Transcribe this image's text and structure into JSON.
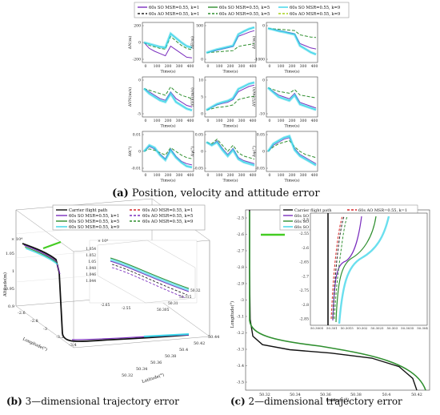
{
  "panel_a": {
    "legend": [
      {
        "label": "60s SO MSR=0.55, k=1",
        "color": "#7b2fbe",
        "style": "solid"
      },
      {
        "label": "60s SO MSR=0.55, k=5",
        "color": "#2f8f2f",
        "style": "solid"
      },
      {
        "label": "60s SO MSR=0.55, k=9",
        "color": "#38d4e8",
        "style": "solid"
      },
      {
        "label": "60s AO MSR=0.55, k=1",
        "color": "#222222",
        "style": "dashed"
      },
      {
        "label": "60s AO MSR=0.55, k=5",
        "color": "#2f8f2f",
        "style": "dashed"
      },
      {
        "label": "60s AO MSR=0.55, k=9",
        "color": "#a6d01a",
        "style": "dashed"
      }
    ],
    "subplots": [
      {
        "ylabel": "ΔN(m)",
        "ticks": [
          "200",
          "0",
          "-200"
        ]
      },
      {
        "ylabel": "ΔE(m)",
        "ticks": [
          "500",
          "0"
        ]
      },
      {
        "ylabel": "ΔU(m)",
        "ticks": [
          "0",
          "-1000"
        ]
      },
      {
        "ylabel": "ΔVN(m/s)",
        "ticks": [
          "0",
          "-5"
        ]
      },
      {
        "ylabel": "ΔVE(m/s)",
        "ticks": [
          "10",
          "5",
          "0"
        ]
      },
      {
        "ylabel": "ΔVU(m/s)",
        "ticks": [
          "0",
          "-10"
        ]
      },
      {
        "ylabel": "Δθ(°)",
        "ticks": [
          "0.01",
          "0",
          "-0.01"
        ]
      },
      {
        "ylabel": "Δγ(°)",
        "ticks": [
          "0.05",
          "0",
          "-0.05"
        ]
      },
      {
        "ylabel": "Δψ(°)",
        "ticks": [
          "0.05",
          "0",
          "-0.05"
        ]
      }
    ],
    "xlabel": "Time(s)",
    "xticks": [
      "0",
      "100",
      "200",
      "300",
      "400"
    ],
    "caption_label": "(a)",
    "caption_text": " Position, velocity and attitude error"
  },
  "panel_b": {
    "legend_left": [
      {
        "label": "Carrier flight path",
        "color": "#111111",
        "style": "solid"
      },
      {
        "label": "60s SO MSR=0.55, k=1",
        "color": "#7b2fbe",
        "style": "solid"
      },
      {
        "label": "60s SO MSR=0.55, k=5",
        "color": "#2f8f2f",
        "style": "solid"
      },
      {
        "label": "60s SO MSR=0.55, k=9",
        "color": "#38d4e8",
        "style": "solid"
      }
    ],
    "legend_right": [
      {
        "label": "60s AO MSR=0.55, k=1",
        "color": "#d62728",
        "style": "dashed"
      },
      {
        "label": "60s AO MSR=0.55, k=5",
        "color": "#7b2fbe",
        "style": "dashed"
      },
      {
        "label": "60s AO MSR=0.55, k=9",
        "color": "#2f8f2f",
        "style": "dashed"
      }
    ],
    "zlabel": "Altitude(m)",
    "xlabel": "Longitude(°)",
    "ylabel": "Latitude(°)",
    "scale": "× 10⁴",
    "zticks": [
      "1.05",
      "1",
      "0.95",
      "0.9"
    ],
    "xticks": [
      "-2.6",
      "-2.8",
      "-3",
      "-3.2",
      "-3.4"
    ],
    "yticks": [
      "50.32",
      "50.34",
      "50.36",
      "50.38",
      "50.4",
      "50.42",
      "50.44"
    ],
    "inset_scale": "× 10⁴",
    "inset_zticks": [
      "1.054",
      "1.052",
      "1.05",
      "1.048",
      "1.046",
      "1.044"
    ],
    "inset_xticks": [
      "-2.65",
      "-2.55"
    ],
    "inset_yticks": [
      "50.305",
      "50.31",
      "50.315",
      "50.32"
    ],
    "caption_label": "(b)",
    "caption_text": " 3—dimensional trajectory error"
  },
  "panel_c": {
    "legend_left": [
      {
        "label": "Carrier flight path",
        "color": "#111111",
        "style": "solid"
      },
      {
        "label": "60s SO MSR=0.55, k=1",
        "color": "#7b2fbe",
        "style": "solid"
      },
      {
        "label": "60s SO MSR=0.55, k=5",
        "color": "#2f8f2f",
        "style": "solid"
      },
      {
        "label": "60s SO MSR=0.55, k=9",
        "color": "#38d4e8",
        "style": "solid"
      }
    ],
    "legend_right": [
      {
        "label": "60s AO MSR=0.55, k=1",
        "color": "#d62728",
        "style": "dashed"
      },
      {
        "label": "60s AO MSR=0.55, k=5",
        "color": "#222222",
        "style": "dashed"
      },
      {
        "label": "60s AO MSR=0.55, k=9",
        "color": "#2f8f2f",
        "style": "dashed"
      }
    ],
    "ylabel": "Longitude(°)",
    "xlabel": "Latitude(°)",
    "yticks": [
      "-2.5",
      "-2.6",
      "-2.7",
      "-2.8",
      "-2.9",
      "-3",
      "-3.1",
      "-3.2",
      "-3.3",
      "-3.4",
      "-3.5"
    ],
    "xticks": [
      "50.32",
      "50.34",
      "50.36",
      "50.38",
      "50.4",
      "50.42"
    ],
    "inset_yticks": [
      "-2.5",
      "-2.55",
      "-2.6",
      "-2.65",
      "-2.7",
      "-2.75",
      "-2.8",
      "-2.85"
    ],
    "inset_xticks": [
      "50.3005",
      "50.301",
      "50.3015",
      "50.302",
      "50.3025",
      "50.303",
      "50.3035",
      "50.304"
    ],
    "caption_label": "(c)",
    "caption_text": " 2—dimensional trajectory error"
  },
  "chart_data": [
    {
      "type": "line",
      "panel": "a",
      "x": [
        0,
        50,
        100,
        150,
        200,
        250,
        300,
        350,
        400,
        450
      ],
      "xlabel": "Time(s)",
      "subplot_labels": [
        "ΔN(m)",
        "ΔE(m)",
        "ΔU(m)",
        "ΔVN(m/s)",
        "ΔVE(m/s)",
        "ΔVU(m/s)",
        "Δθ(°)",
        "Δγ(°)",
        "Δψ(°)"
      ],
      "subplot_yranges": [
        [
          -250,
          250
        ],
        [
          -200,
          700
        ],
        [
          -1500,
          200
        ],
        [
          -8,
          3
        ],
        [
          -2,
          12
        ],
        [
          -15,
          5
        ],
        [
          -0.015,
          0.015
        ],
        [
          -0.06,
          0.06
        ],
        [
          -0.06,
          0.06
        ]
      ],
      "series_by_subplot": [
        [
          [
            0,
            -80,
            -120,
            -150,
            -180,
            -50,
            -100,
            -150,
            -200,
            -210
          ],
          [
            0,
            -40,
            -60,
            -80,
            -90,
            80,
            20,
            -40,
            -80,
            -100
          ],
          [
            0,
            -20,
            -40,
            -60,
            -70,
            120,
            60,
            0,
            -50,
            -70
          ]
        ],
        [
          [
            0,
            30,
            60,
            90,
            120,
            150,
            400,
            450,
            500,
            540
          ],
          [
            0,
            10,
            20,
            30,
            40,
            50,
            150,
            180,
            200,
            220
          ],
          [
            0,
            40,
            80,
            110,
            140,
            170,
            450,
            520,
            580,
            620
          ]
        ],
        [
          [
            0,
            -50,
            -100,
            -150,
            -200,
            -250,
            -700,
            -800,
            -900,
            -950
          ],
          [
            0,
            -20,
            -40,
            -60,
            -80,
            -100,
            -300,
            -350,
            -400,
            -420
          ],
          [
            0,
            -60,
            -120,
            -170,
            -230,
            -280,
            -800,
            -950,
            -1100,
            -1200
          ]
        ],
        [
          [
            0,
            -1,
            -2,
            -3,
            -3.5,
            -1,
            -3,
            -4,
            -5,
            -5.5
          ],
          [
            0,
            -0.5,
            -1,
            -1.5,
            -2,
            0.5,
            -1,
            -2,
            -2.5,
            -3
          ],
          [
            0,
            -1.5,
            -2.5,
            -3.5,
            -4,
            -1.5,
            -4,
            -5,
            -6,
            -6.5
          ]
        ],
        [
          [
            0,
            1,
            2,
            2.5,
            3,
            4,
            7,
            8,
            9,
            9.5
          ],
          [
            0,
            0.5,
            1,
            1.2,
            1.5,
            2,
            4,
            4.5,
            5,
            5.2
          ],
          [
            0,
            1.2,
            2.3,
            3,
            3.5,
            4.5,
            8,
            9,
            10,
            10.5
          ]
        ],
        [
          [
            0,
            -2,
            -4,
            -5,
            -6,
            -3,
            -8,
            -9,
            -10,
            -11
          ],
          [
            0,
            -1,
            -2,
            -2.5,
            -3,
            -1,
            -4,
            -4.5,
            -5,
            -5.5
          ],
          [
            0,
            -2.5,
            -5,
            -6,
            -7,
            -4,
            -9,
            -10,
            -11,
            -12
          ]
        ],
        [
          [
            0,
            0.004,
            0.002,
            -0.002,
            -0.006,
            0.002,
            -0.004,
            -0.008,
            -0.01,
            -0.011
          ],
          [
            0,
            0.002,
            0.001,
            -0.001,
            -0.003,
            0.003,
            0,
            -0.003,
            -0.005,
            -0.006
          ],
          [
            0,
            0.005,
            0.003,
            -0.003,
            -0.007,
            0.001,
            -0.005,
            -0.009,
            -0.012,
            -0.013
          ]
        ],
        [
          [
            0.03,
            0.02,
            0.035,
            0.01,
            -0.01,
            0.01,
            -0.02,
            -0.03,
            -0.035,
            -0.04
          ],
          [
            0.03,
            0.025,
            0.04,
            0.02,
            0,
            0.02,
            -0.005,
            -0.015,
            -0.02,
            -0.025
          ],
          [
            0.03,
            0.02,
            0.03,
            0.005,
            -0.015,
            0.005,
            -0.025,
            -0.035,
            -0.04,
            -0.045
          ]
        ],
        [
          [
            0,
            0.02,
            0.03,
            0.04,
            0.045,
            0.01,
            -0.01,
            -0.02,
            -0.03,
            -0.04
          ],
          [
            0,
            0.015,
            0.025,
            0.03,
            0.035,
            0.015,
            0,
            -0.01,
            -0.015,
            -0.02
          ],
          [
            0,
            0.025,
            0.035,
            0.045,
            0.05,
            0.005,
            -0.015,
            -0.025,
            -0.035,
            -0.045
          ]
        ]
      ],
      "series": [
        {
          "name": "60s SO MSR=0.55, k=1"
        },
        {
          "name": "60s AO MSR=0.55, k=5"
        },
        {
          "name": "60s SO MSR=0.55, k=9"
        }
      ]
    },
    {
      "type": "line",
      "panel": "c",
      "xlabel": "Latitude(°)",
      "ylabel": "Longitude(°)",
      "xlim": [
        50.3,
        50.43
      ],
      "ylim": [
        -3.52,
        -2.45
      ],
      "series": [
        {
          "name": "Carrier flight path",
          "x": [
            50.3005,
            50.3005,
            50.301,
            50.303,
            50.31,
            50.33,
            50.36,
            50.39,
            50.41,
            50.42,
            50.423
          ],
          "y": [
            -2.45,
            -2.8,
            -3.1,
            -3.2,
            -3.25,
            -3.28,
            -3.3,
            -3.33,
            -3.38,
            -3.45,
            -3.52
          ]
        }
      ]
    }
  ]
}
